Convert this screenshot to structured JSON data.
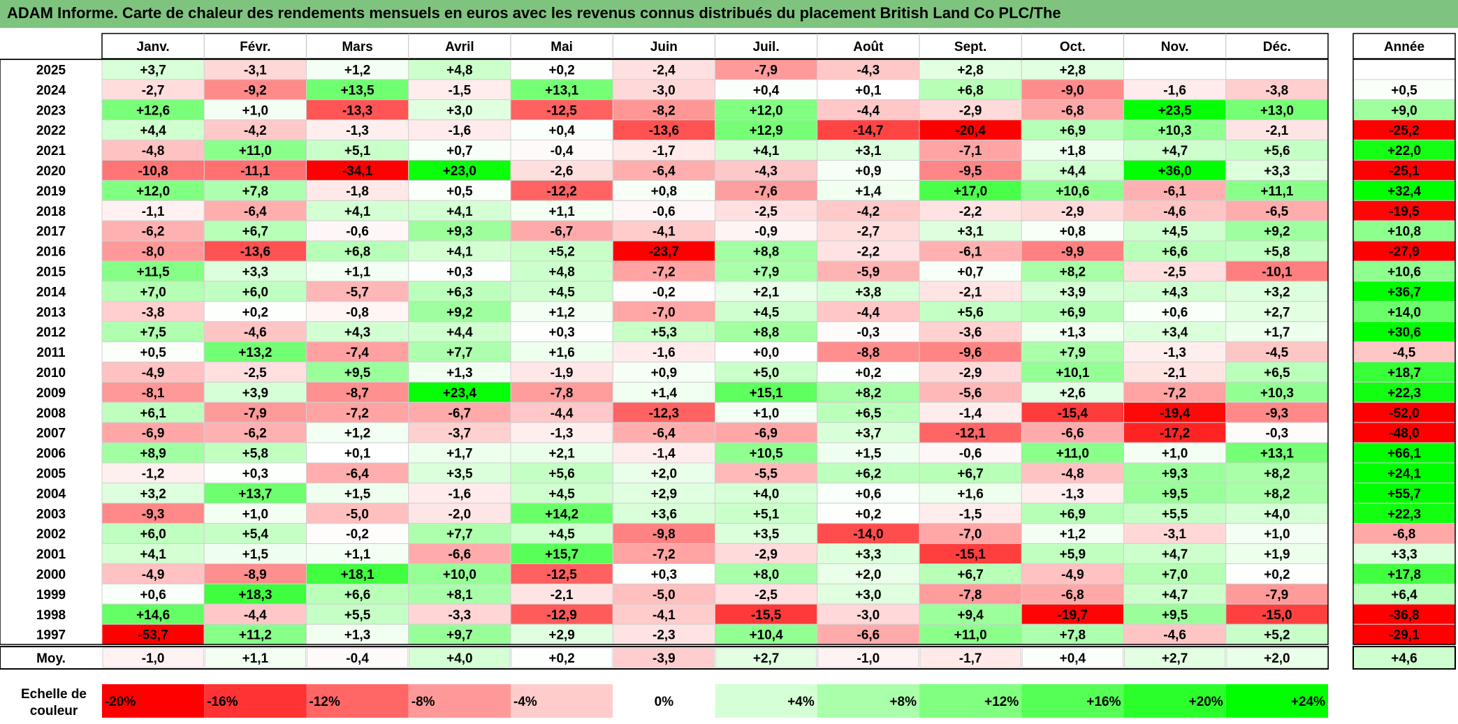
{
  "title": "ADAM Informe. Carte de chaleur des rendements mensuels en euros avec les revenus connus distribués du placement British Land Co PLC/The",
  "chart_data": {
    "type": "heatmap",
    "months": [
      "Janv.",
      "Févr.",
      "Mars",
      "Avril",
      "Mai",
      "Juin",
      "Juil.",
      "Août",
      "Sept.",
      "Oct.",
      "Nov.",
      "Déc."
    ],
    "year_header": "Année",
    "avg_label": "Moy.",
    "rows": [
      {
        "year": "2025",
        "values": [
          "+3,7",
          "-3,1",
          "+1,2",
          "+4,8",
          "+0,2",
          "-2,4",
          "-7,9",
          "-4,3",
          "+2,8",
          "+2,8",
          "",
          ""
        ],
        "annual": ""
      },
      {
        "year": "2024",
        "values": [
          "-2,7",
          "-9,2",
          "+13,5",
          "-1,5",
          "+13,1",
          "-3,0",
          "+0,4",
          "+0,1",
          "+6,8",
          "-9,0",
          "-1,6",
          "-3,8"
        ],
        "annual": "+0,5"
      },
      {
        "year": "2023",
        "values": [
          "+12,6",
          "+1,0",
          "-13,3",
          "+3,0",
          "-12,5",
          "-8,2",
          "+12,0",
          "-4,4",
          "-2,9",
          "-6,8",
          "+23,5",
          "+13,0"
        ],
        "annual": "+9,0"
      },
      {
        "year": "2022",
        "values": [
          "+4,4",
          "-4,2",
          "-1,3",
          "-1,6",
          "+0,4",
          "-13,6",
          "+12,9",
          "-14,7",
          "-20,4",
          "+6,9",
          "+10,3",
          "-2,1"
        ],
        "annual": "-25,2"
      },
      {
        "year": "2021",
        "values": [
          "-4,8",
          "+11,0",
          "+5,1",
          "+0,7",
          "-0,4",
          "-1,7",
          "+4,1",
          "+3,1",
          "-7,1",
          "+1,8",
          "+4,7",
          "+5,6"
        ],
        "annual": "+22,0"
      },
      {
        "year": "2020",
        "values": [
          "-10,8",
          "-11,1",
          "-34,1",
          "+23,0",
          "-2,6",
          "-6,4",
          "-4,3",
          "+0,9",
          "-9,5",
          "+4,4",
          "+36,0",
          "+3,3"
        ],
        "annual": "-25,1"
      },
      {
        "year": "2019",
        "values": [
          "+12,0",
          "+7,8",
          "-1,8",
          "+0,5",
          "-12,2",
          "+0,8",
          "-7,6",
          "+1,4",
          "+17,0",
          "+10,6",
          "-6,1",
          "+11,1"
        ],
        "annual": "+32,4"
      },
      {
        "year": "2018",
        "values": [
          "-1,1",
          "-6,4",
          "+4,1",
          "+4,1",
          "+1,1",
          "-0,6",
          "-2,5",
          "-4,2",
          "-2,2",
          "-2,9",
          "-4,6",
          "-6,5"
        ],
        "annual": "-19,5"
      },
      {
        "year": "2017",
        "values": [
          "-6,2",
          "+6,7",
          "-0,6",
          "+9,3",
          "-6,7",
          "-4,1",
          "-0,9",
          "-2,7",
          "+3,1",
          "+0,8",
          "+4,5",
          "+9,2"
        ],
        "annual": "+10,8"
      },
      {
        "year": "2016",
        "values": [
          "-8,0",
          "-13,6",
          "+6,8",
          "+4,1",
          "+5,2",
          "-23,7",
          "+8,8",
          "-2,2",
          "-6,1",
          "-9,9",
          "+6,6",
          "+5,8"
        ],
        "annual": "-27,9"
      },
      {
        "year": "2015",
        "values": [
          "+11,5",
          "+3,3",
          "+1,1",
          "+0,3",
          "+4,8",
          "-7,2",
          "+7,9",
          "-5,9",
          "+0,7",
          "+8,2",
          "-2,5",
          "-10,1"
        ],
        "annual": "+10,6"
      },
      {
        "year": "2014",
        "values": [
          "+7,0",
          "+6,0",
          "-5,7",
          "+6,3",
          "+4,5",
          "-0,2",
          "+2,1",
          "+3,8",
          "-2,1",
          "+3,9",
          "+4,3",
          "+3,2"
        ],
        "annual": "+36,7"
      },
      {
        "year": "2013",
        "values": [
          "-3,8",
          "+0,2",
          "-0,8",
          "+9,2",
          "+1,2",
          "-7,0",
          "+4,5",
          "-4,4",
          "+5,6",
          "+6,9",
          "+0,6",
          "+2,7"
        ],
        "annual": "+14,0"
      },
      {
        "year": "2012",
        "values": [
          "+7,5",
          "-4,6",
          "+4,3",
          "+4,4",
          "+0,3",
          "+5,3",
          "+8,8",
          "-0,3",
          "-3,6",
          "+1,3",
          "+3,4",
          "+1,7"
        ],
        "annual": "+30,6"
      },
      {
        "year": "2011",
        "values": [
          "+0,5",
          "+13,2",
          "-7,4",
          "+7,7",
          "+1,6",
          "-1,6",
          "+0,0",
          "-8,8",
          "-9,6",
          "+7,9",
          "-1,3",
          "-4,5"
        ],
        "annual": "-4,5"
      },
      {
        "year": "2010",
        "values": [
          "-4,9",
          "-2,5",
          "+9,5",
          "+1,3",
          "-1,9",
          "+0,9",
          "+5,0",
          "+0,2",
          "-2,9",
          "+10,1",
          "-2,1",
          "+6,5"
        ],
        "annual": "+18,7"
      },
      {
        "year": "2009",
        "values": [
          "-8,1",
          "+3,9",
          "-8,7",
          "+23,4",
          "-7,8",
          "+1,4",
          "+15,1",
          "+8,2",
          "-5,6",
          "+2,6",
          "-7,2",
          "+10,3"
        ],
        "annual": "+22,3"
      },
      {
        "year": "2008",
        "values": [
          "+6,1",
          "-7,9",
          "-7,2",
          "-6,7",
          "-4,4",
          "-12,3",
          "+1,0",
          "+6,5",
          "-1,4",
          "-15,4",
          "-19,4",
          "-9,3"
        ],
        "annual": "-52,0"
      },
      {
        "year": "2007",
        "values": [
          "-6,9",
          "-6,2",
          "+1,2",
          "-3,7",
          "-1,3",
          "-6,4",
          "-6,9",
          "+3,7",
          "-12,1",
          "-6,6",
          "-17,2",
          "-0,3"
        ],
        "annual": "-48,0"
      },
      {
        "year": "2006",
        "values": [
          "+8,9",
          "+5,8",
          "+0,1",
          "+1,7",
          "+2,1",
          "-1,4",
          "+10,5",
          "+1,5",
          "-0,6",
          "+11,0",
          "+1,0",
          "+13,1"
        ],
        "annual": "+66,1"
      },
      {
        "year": "2005",
        "values": [
          "-1,2",
          "+0,3",
          "-6,4",
          "+3,5",
          "+5,6",
          "+2,0",
          "-5,5",
          "+6,2",
          "+6,7",
          "-4,8",
          "+9,3",
          "+8,2"
        ],
        "annual": "+24,1"
      },
      {
        "year": "2004",
        "values": [
          "+3,2",
          "+13,7",
          "+1,5",
          "-1,6",
          "+4,5",
          "+2,9",
          "+4,0",
          "+0,6",
          "+1,6",
          "-1,3",
          "+9,5",
          "+8,2"
        ],
        "annual": "+55,7"
      },
      {
        "year": "2003",
        "values": [
          "-9,3",
          "+1,0",
          "-5,0",
          "-2,0",
          "+14,2",
          "+3,6",
          "+5,1",
          "+0,2",
          "-1,5",
          "+6,9",
          "+5,5",
          "+4,0"
        ],
        "annual": "+22,3"
      },
      {
        "year": "2002",
        "values": [
          "+6,0",
          "+5,4",
          "-0,2",
          "+7,7",
          "+4,5",
          "-9,8",
          "+3,5",
          "-14,0",
          "-7,0",
          "+1,2",
          "-3,1",
          "+1,0"
        ],
        "annual": "-6,8"
      },
      {
        "year": "2001",
        "values": [
          "+4,1",
          "+1,5",
          "+1,1",
          "-6,6",
          "+15,7",
          "-7,2",
          "-2,9",
          "+3,3",
          "-15,1",
          "+5,9",
          "+4,7",
          "+1,9"
        ],
        "annual": "+3,3"
      },
      {
        "year": "2000",
        "values": [
          "-4,9",
          "-8,9",
          "+18,1",
          "+10,0",
          "-12,5",
          "+0,3",
          "+8,0",
          "+2,0",
          "+6,7",
          "-4,9",
          "+7,0",
          "+0,2"
        ],
        "annual": "+17,8"
      },
      {
        "year": "1999",
        "values": [
          "+0,6",
          "+18,3",
          "+6,6",
          "+8,1",
          "-2,1",
          "-5,0",
          "-2,5",
          "+3,0",
          "-7,8",
          "-6,8",
          "+4,7",
          "-7,9"
        ],
        "annual": "+6,4"
      },
      {
        "year": "1998",
        "values": [
          "+14,6",
          "-4,4",
          "+5,5",
          "-3,3",
          "-12,9",
          "-4,1",
          "-15,5",
          "-3,0",
          "+9,4",
          "-19,7",
          "+9,5",
          "-15,0"
        ],
        "annual": "-36,8"
      },
      {
        "year": "1997",
        "values": [
          "-53,7",
          "+11,2",
          "+1,3",
          "+9,7",
          "+2,9",
          "-2,3",
          "+10,4",
          "-6,6",
          "+11,0",
          "+7,8",
          "-4,6",
          "+5,2"
        ],
        "annual": "-29,1"
      }
    ],
    "average": {
      "values": [
        "-1,0",
        "+1,1",
        "-0,4",
        "+4,0",
        "+0,2",
        "-3,9",
        "+2,7",
        "-1,0",
        "-1,7",
        "+0,4",
        "+2,7",
        "+2,0"
      ],
      "annual": "+4,6"
    },
    "scale_label": [
      "Echelle de",
      "couleur"
    ],
    "scale": [
      {
        "label": "-20%",
        "value": -20
      },
      {
        "label": "-16%",
        "value": -16
      },
      {
        "label": "-12%",
        "value": -12
      },
      {
        "label": "-8%",
        "value": -8
      },
      {
        "label": "-4%",
        "value": -4
      },
      {
        "label": "0%",
        "value": 0
      },
      {
        "label": "+4%",
        "value": 4
      },
      {
        "label": "+8%",
        "value": 8
      },
      {
        "label": "+12%",
        "value": 12
      },
      {
        "label": "+16%",
        "value": 16
      },
      {
        "label": "+20%",
        "value": 20
      },
      {
        "label": "+24%",
        "value": 24
      }
    ],
    "colors": {
      "negative": "#ff0000",
      "neutral": "#ffffff",
      "positive": "#00ff00",
      "banner": "#7ec47e"
    }
  }
}
